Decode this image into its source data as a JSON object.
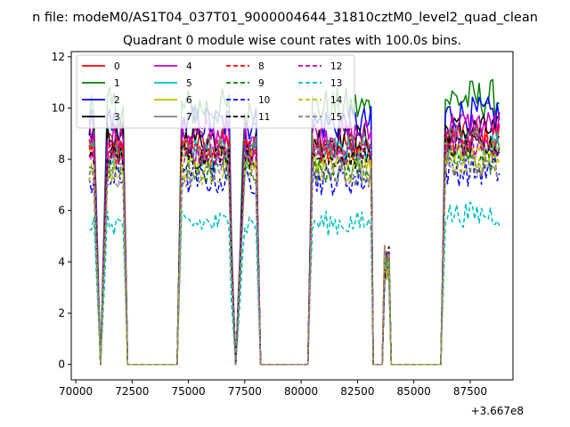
{
  "chart_data": {
    "type": "line",
    "suptitle": "n file: modeM0/AS1T04_037T01_9000004644_31810cztM0_level2_quad_clean",
    "title": "Quadrant 0 module wise count rates with 100.0s bins.",
    "offset_label": "+3.667e8",
    "xlim": [
      69800,
      89400
    ],
    "ylim": [
      -0.6,
      12.2
    ],
    "x_ticks": [
      70000,
      72500,
      75000,
      77500,
      80000,
      82500,
      85000,
      87500
    ],
    "x_tick_labels": [
      "70000",
      "72500",
      "75000",
      "77500",
      "80000",
      "82500",
      "85000",
      "87500"
    ],
    "y_ticks": [
      0,
      2,
      4,
      6,
      8,
      10,
      12
    ],
    "y_tick_labels": [
      "0",
      "2",
      "4",
      "6",
      "8",
      "10",
      "12"
    ],
    "bin_width": 100,
    "x_start": 70600,
    "x_end": 88800,
    "gap_segments": [
      {
        "x0": 72300,
        "x1": 74500
      },
      {
        "x0": 78200,
        "x1": 80300
      },
      {
        "x0": 84300,
        "x1": 86200
      }
    ],
    "dips": [
      {
        "x0": 70800,
        "x1": 71400,
        "min_x": 71100
      },
      {
        "x0": 76900,
        "x1": 77500,
        "min_x": 77100
      },
      {
        "x0": 83200,
        "x1": 84300,
        "min_x": 83500
      }
    ],
    "spike": {
      "x": 83800,
      "values_range": [
        3.2,
        4.7
      ]
    },
    "legend_position": "upper left",
    "series": [
      {
        "name": "0",
        "color": "#ff0000",
        "style": "solid",
        "level": 8.6,
        "amplitude": 0.6
      },
      {
        "name": "1",
        "color": "#008000",
        "style": "solid",
        "level": 10.0,
        "amplitude": 0.8
      },
      {
        "name": "2",
        "color": "#0000ff",
        "style": "solid",
        "level": 9.4,
        "amplitude": 0.7
      },
      {
        "name": "3",
        "color": "#000000",
        "style": "solid",
        "level": 8.8,
        "amplitude": 0.6
      },
      {
        "name": "4",
        "color": "#bf00bf",
        "style": "solid",
        "level": 9.0,
        "amplitude": 0.6
      },
      {
        "name": "5",
        "color": "#00bfbf",
        "style": "solid",
        "level": 8.2,
        "amplitude": 0.6
      },
      {
        "name": "6",
        "color": "#bfbf00",
        "style": "solid",
        "level": 8.0,
        "amplitude": 0.5
      },
      {
        "name": "7",
        "color": "#808080",
        "style": "solid",
        "level": 8.4,
        "amplitude": 0.6
      },
      {
        "name": "8",
        "color": "#ff0000",
        "style": "dashed",
        "level": 8.3,
        "amplitude": 0.5
      },
      {
        "name": "9",
        "color": "#008000",
        "style": "dashed",
        "level": 7.6,
        "amplitude": 0.5
      },
      {
        "name": "10",
        "color": "#0000ff",
        "style": "dashed",
        "level": 7.2,
        "amplitude": 0.6
      },
      {
        "name": "11",
        "color": "#000000",
        "style": "dashed",
        "level": 8.1,
        "amplitude": 0.5
      },
      {
        "name": "12",
        "color": "#bf00bf",
        "style": "dashed",
        "level": 8.2,
        "amplitude": 0.5
      },
      {
        "name": "13",
        "color": "#00bfbf",
        "style": "dashed",
        "level": 5.5,
        "amplitude": 0.5
      },
      {
        "name": "14",
        "color": "#bfbf00",
        "style": "dashed",
        "level": 7.5,
        "amplitude": 0.5
      },
      {
        "name": "15",
        "color": "#808080",
        "style": "dashed",
        "level": 7.4,
        "amplitude": 0.5
      }
    ]
  }
}
